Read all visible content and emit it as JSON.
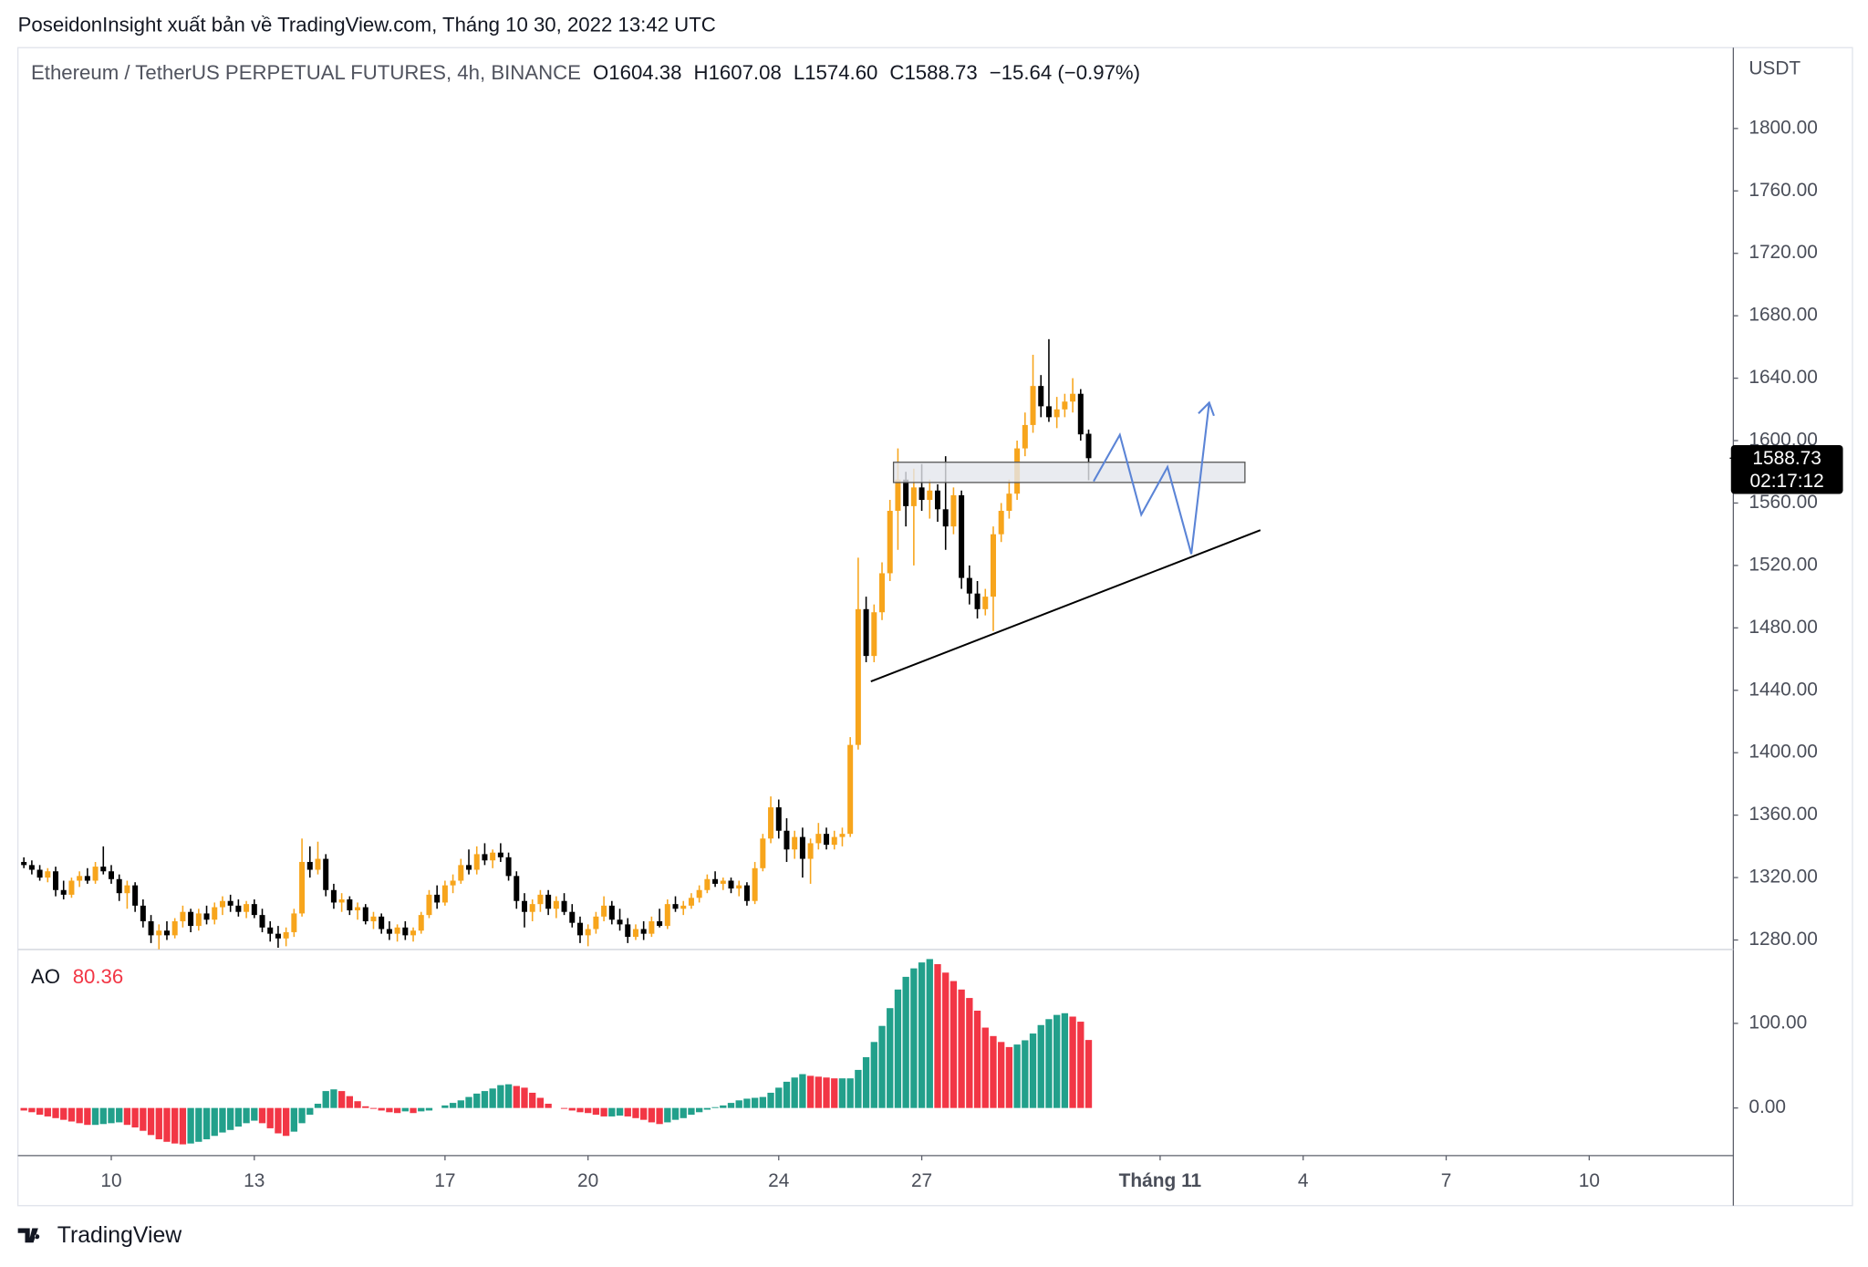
{
  "header": {
    "attribution": "PoseidonInsight xuất bản về TradingView.com, Tháng 10 30, 2022 13:42 UTC"
  },
  "chart_data": [
    {
      "type": "candlestick",
      "title": "Ethereum / TetherUS PERPETUAL FUTURES, 4h, BINANCE",
      "ohlc_labels": [
        "O",
        "H",
        "L",
        "C"
      ],
      "last_ohlc_labels": [
        "1604.38",
        "1607.08",
        "1574.60",
        "1588.73"
      ],
      "change_label": "−15.64 (−0.97%)",
      "y_axis_label": "USDT",
      "countdown": "02:17:12",
      "open": [
        1330,
        1328,
        1325,
        1320,
        1324,
        1312,
        1309,
        1318,
        1321,
        1318,
        1327,
        1324,
        1319,
        1310,
        1315,
        1302,
        1292,
        1283,
        1286,
        1283,
        1292,
        1298,
        1289,
        1297,
        1293,
        1301,
        1305,
        1302,
        1298,
        1303,
        1296,
        1288,
        1284,
        1281,
        1285,
        1297,
        1330,
        1325,
        1332,
        1312,
        1304,
        1306,
        1299,
        1301,
        1292,
        1295,
        1287,
        1284,
        1288,
        1283,
        1286,
        1296,
        1309,
        1304,
        1315,
        1318,
        1328,
        1325,
        1335,
        1331,
        1336,
        1333,
        1321,
        1305,
        1298,
        1303,
        1309,
        1300,
        1305,
        1298,
        1291,
        1283,
        1287,
        1295,
        1302,
        1293,
        1290,
        1282,
        1287,
        1284,
        1292,
        1289,
        1303,
        1300,
        1302,
        1307,
        1312,
        1319,
        1316,
        1318,
        1313,
        1315,
        1305,
        1326,
        1345,
        1365,
        1350,
        1338,
        1346,
        1332,
        1342,
        1348,
        1341,
        1346,
        1348,
        1405,
        1492,
        1462,
        1490,
        1515,
        1555,
        1575,
        1558,
        1570,
        1562,
        1568,
        1556,
        1545,
        1565,
        1512,
        1502,
        1492,
        1500,
        1540,
        1555,
        1566,
        1595,
        1610,
        1635,
        1622,
        1615,
        1620,
        1625,
        1630,
        1604.38
      ],
      "high": [
        1333,
        1331,
        1328,
        1326,
        1327,
        1318,
        1320,
        1324,
        1326,
        1330,
        1340,
        1328,
        1322,
        1318,
        1317,
        1306,
        1296,
        1290,
        1292,
        1294,
        1302,
        1300,
        1300,
        1302,
        1304,
        1308,
        1309,
        1306,
        1305,
        1306,
        1300,
        1292,
        1289,
        1288,
        1300,
        1345,
        1340,
        1343,
        1335,
        1316,
        1310,
        1308,
        1304,
        1303,
        1298,
        1297,
        1292,
        1290,
        1292,
        1288,
        1298,
        1312,
        1315,
        1318,
        1322,
        1332,
        1338,
        1340,
        1342,
        1338,
        1342,
        1336,
        1324,
        1310,
        1306,
        1312,
        1312,
        1308,
        1310,
        1303,
        1295,
        1290,
        1298,
        1308,
        1305,
        1300,
        1294,
        1290,
        1292,
        1295,
        1300,
        1306,
        1308,
        1305,
        1310,
        1315,
        1322,
        1324,
        1320,
        1320,
        1318,
        1317,
        1330,
        1348,
        1372,
        1370,
        1358,
        1350,
        1352,
        1345,
        1355,
        1352,
        1350,
        1352,
        1410,
        1525,
        1500,
        1495,
        1522,
        1562,
        1595,
        1580,
        1582,
        1585,
        1575,
        1572,
        1590,
        1570,
        1568,
        1520,
        1510,
        1505,
        1545,
        1560,
        1575,
        1600,
        1618,
        1655,
        1642,
        1665,
        1628,
        1630,
        1640,
        1633,
        1607.08
      ],
      "low": [
        1326,
        1322,
        1318,
        1317,
        1308,
        1306,
        1307,
        1314,
        1316,
        1316,
        1322,
        1316,
        1305,
        1300,
        1298,
        1288,
        1278,
        1274,
        1280,
        1281,
        1288,
        1285,
        1286,
        1290,
        1290,
        1296,
        1298,
        1295,
        1294,
        1294,
        1285,
        1279,
        1275,
        1276,
        1282,
        1295,
        1320,
        1322,
        1308,
        1300,
        1298,
        1296,
        1293,
        1290,
        1287,
        1284,
        1280,
        1279,
        1280,
        1279,
        1284,
        1294,
        1300,
        1302,
        1310,
        1316,
        1322,
        1322,
        1328,
        1326,
        1330,
        1318,
        1300,
        1288,
        1292,
        1298,
        1296,
        1294,
        1296,
        1288,
        1278,
        1276,
        1284,
        1292,
        1290,
        1286,
        1278,
        1280,
        1280,
        1282,
        1288,
        1287,
        1298,
        1296,
        1300,
        1304,
        1310,
        1314,
        1312,
        1310,
        1308,
        1302,
        1303,
        1324,
        1342,
        1345,
        1330,
        1332,
        1320,
        1316,
        1338,
        1338,
        1338,
        1340,
        1346,
        1402,
        1458,
        1458,
        1485,
        1510,
        1530,
        1545,
        1520,
        1555,
        1550,
        1548,
        1530,
        1540,
        1505,
        1495,
        1486,
        1488,
        1478,
        1535,
        1550,
        1562,
        1590,
        1605,
        1615,
        1612,
        1608,
        1615,
        1618,
        1600,
        1574.6
      ],
      "close": [
        1328,
        1325,
        1320,
        1324,
        1312,
        1309,
        1318,
        1321,
        1318,
        1327,
        1324,
        1319,
        1310,
        1315,
        1302,
        1292,
        1283,
        1286,
        1283,
        1292,
        1298,
        1289,
        1297,
        1293,
        1301,
        1305,
        1302,
        1298,
        1303,
        1296,
        1288,
        1284,
        1281,
        1285,
        1297,
        1330,
        1325,
        1332,
        1312,
        1304,
        1306,
        1299,
        1301,
        1292,
        1295,
        1287,
        1284,
        1288,
        1283,
        1286,
        1296,
        1309,
        1304,
        1315,
        1318,
        1328,
        1325,
        1335,
        1331,
        1336,
        1333,
        1321,
        1305,
        1298,
        1303,
        1309,
        1300,
        1305,
        1298,
        1291,
        1283,
        1287,
        1295,
        1302,
        1293,
        1290,
        1282,
        1287,
        1284,
        1292,
        1289,
        1303,
        1300,
        1302,
        1307,
        1312,
        1319,
        1316,
        1318,
        1313,
        1315,
        1305,
        1326,
        1345,
        1365,
        1350,
        1338,
        1346,
        1332,
        1342,
        1348,
        1341,
        1346,
        1348,
        1405,
        1492,
        1462,
        1490,
        1515,
        1555,
        1575,
        1558,
        1570,
        1562,
        1568,
        1556,
        1545,
        1565,
        1512,
        1502,
        1492,
        1500,
        1540,
        1555,
        1566,
        1595,
        1610,
        1635,
        1622,
        1615,
        1620,
        1625,
        1630,
        1604,
        1588.73
      ],
      "up_color": "#f7a51c",
      "down_color": "#000000",
      "xlim": [
        -0.75,
        215.14
      ],
      "xticks": [
        {
          "value": 11,
          "label": "10"
        },
        {
          "value": 29,
          "label": "13"
        },
        {
          "value": 53,
          "label": "17"
        },
        {
          "value": 71,
          "label": "20"
        },
        {
          "value": 95,
          "label": "24"
        },
        {
          "value": 113,
          "label": "27"
        },
        {
          "value": 143,
          "label": "Tháng 11"
        },
        {
          "value": 161,
          "label": "4"
        },
        {
          "value": 179,
          "label": "7"
        },
        {
          "value": 197,
          "label": "10"
        }
      ],
      "ylim": [
        1273.9,
        1851.8
      ],
      "yticks": [
        {
          "value": 1280,
          "label": "1280.00"
        },
        {
          "value": 1320,
          "label": "1320.00"
        },
        {
          "value": 1360,
          "label": "1360.00"
        },
        {
          "value": 1400,
          "label": "1400.00"
        },
        {
          "value": 1440,
          "label": "1440.00"
        },
        {
          "value": 1480,
          "label": "1480.00"
        },
        {
          "value": 1520,
          "label": "1520.00"
        },
        {
          "value": 1560,
          "label": "1560.00"
        },
        {
          "value": 1600,
          "label": "1600.00"
        },
        {
          "value": 1640,
          "label": "1640.00"
        },
        {
          "value": 1680,
          "label": "1680.00"
        },
        {
          "value": 1720,
          "label": "1720.00"
        },
        {
          "value": 1760,
          "label": "1760.00"
        },
        {
          "value": 1800,
          "label": "1800.00"
        }
      ]
    },
    {
      "type": "histogram",
      "title": "AO",
      "values": [
        -3,
        -5,
        -8,
        -10,
        -12,
        -14,
        -16,
        -18,
        -20,
        -20,
        -19,
        -18,
        -17,
        -20,
        -23,
        -27,
        -32,
        -37,
        -40,
        -42,
        -43,
        -42,
        -40,
        -37,
        -33,
        -29,
        -26,
        -22,
        -18,
        -15,
        -18,
        -24,
        -30,
        -33,
        -28,
        -18,
        -8,
        5,
        20,
        22,
        20,
        14,
        8,
        2,
        -1,
        -3,
        -5,
        -6,
        -4,
        -6,
        -4,
        -3,
        0,
        3,
        6,
        9,
        13,
        17,
        20,
        23,
        27,
        28,
        26,
        24,
        18,
        12,
        5,
        0,
        -1,
        -3,
        -5,
        -6,
        -8,
        -10,
        -10,
        -9,
        -10,
        -12,
        -14,
        -17,
        -19,
        -17,
        -14,
        -12,
        -8,
        -5,
        -2,
        1,
        3,
        6,
        9,
        11,
        12,
        13,
        18,
        24,
        31,
        36,
        40,
        38,
        37,
        36,
        35,
        35,
        35,
        45,
        60,
        78,
        97,
        118,
        140,
        155,
        165,
        172,
        176,
        170,
        160,
        150,
        140,
        130,
        115,
        95,
        85,
        78,
        72,
        75,
        80,
        88,
        98,
        105,
        110,
        112,
        108,
        102,
        80.36
      ],
      "up_color": "#22a08b",
      "down_color": "#f23645",
      "ylim": [
        -56.3,
        187.3
      ],
      "yticks": [
        {
          "value": 0,
          "label": "0.00"
        },
        {
          "value": 100,
          "label": "100.00"
        }
      ]
    }
  ],
  "footer": {
    "brand": "TradingView"
  }
}
